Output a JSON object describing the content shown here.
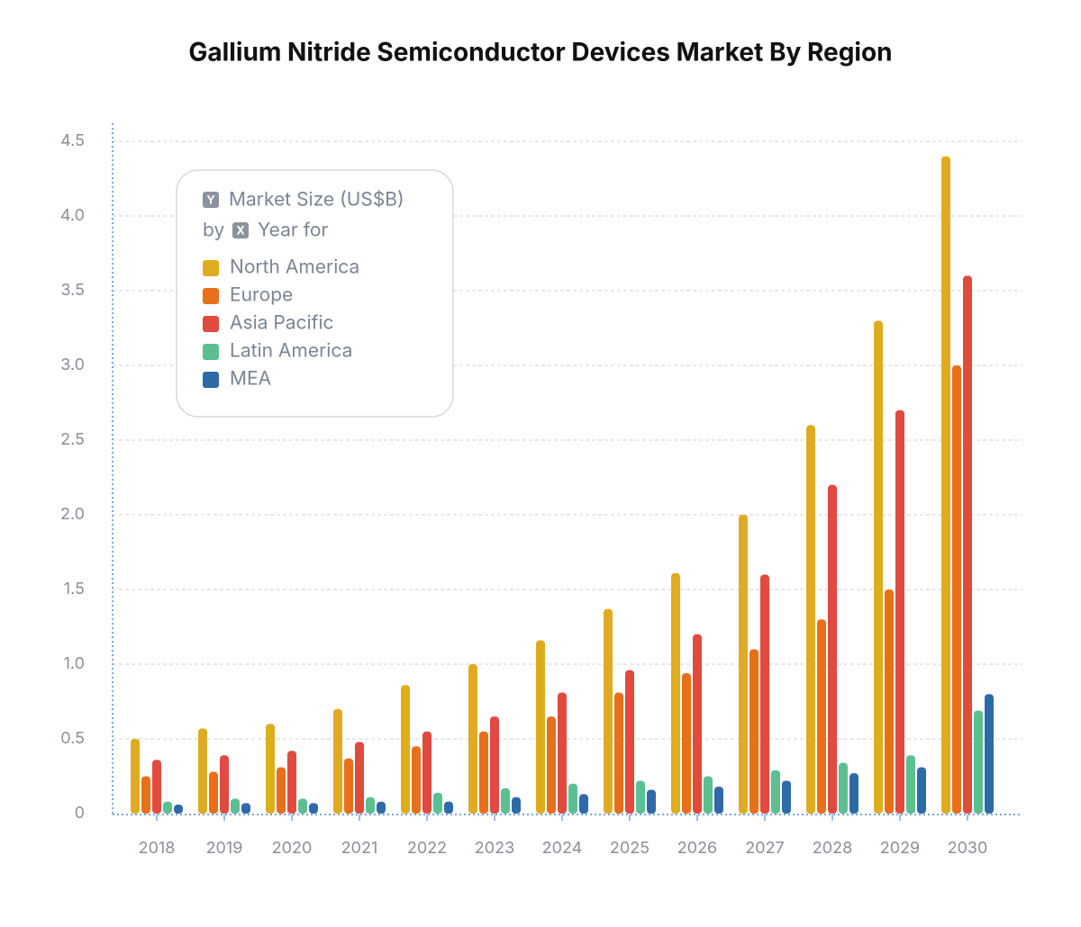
{
  "chart_data": {
    "type": "bar",
    "title": "Gallium Nitride Semiconductor Devices Market By Region",
    "legend_title": {
      "y_badge": "Y",
      "y_text": "Market Size (US$B)",
      "by": "by",
      "x_badge": "X",
      "x_text": "Year for"
    },
    "categories": [
      "2018",
      "2019",
      "2020",
      "2021",
      "2022",
      "2023",
      "2024",
      "2025",
      "2026",
      "2027",
      "2028",
      "2029",
      "2030"
    ],
    "series": [
      {
        "name": "North America",
        "color": "#e0ac1f",
        "values": [
          0.5,
          0.57,
          0.6,
          0.7,
          0.86,
          1.0,
          1.16,
          1.37,
          1.61,
          2.0,
          2.6,
          3.3,
          4.4
        ]
      },
      {
        "name": "Europe",
        "color": "#e8701a",
        "values": [
          0.25,
          0.28,
          0.31,
          0.37,
          0.45,
          0.55,
          0.65,
          0.81,
          0.94,
          1.1,
          1.3,
          1.5,
          3.0
        ]
      },
      {
        "name": "Asia Pacific",
        "color": "#e04a3f",
        "values": [
          0.36,
          0.39,
          0.42,
          0.48,
          0.55,
          0.65,
          0.81,
          0.96,
          1.2,
          1.6,
          2.2,
          2.7,
          3.6
        ]
      },
      {
        "name": "Latin America",
        "color": "#5cbf91",
        "values": [
          0.08,
          0.1,
          0.1,
          0.11,
          0.14,
          0.17,
          0.2,
          0.22,
          0.25,
          0.29,
          0.34,
          0.39,
          0.69
        ]
      },
      {
        "name": "MEA",
        "color": "#2f6aa8",
        "values": [
          0.06,
          0.07,
          0.07,
          0.08,
          0.08,
          0.11,
          0.13,
          0.16,
          0.18,
          0.22,
          0.27,
          0.31,
          0.8
        ]
      }
    ],
    "ylim": [
      0,
      4.5
    ],
    "yticks": [
      0,
      0.5,
      {
        "value": 1,
        "label": "1.0"
      },
      1.5,
      {
        "value": 2,
        "label": "2.0"
      },
      2.5,
      {
        "value": 3,
        "label": "3.0"
      },
      3.5,
      {
        "value": 4,
        "label": "4.0"
      },
      4.5
    ],
    "grid": true
  }
}
